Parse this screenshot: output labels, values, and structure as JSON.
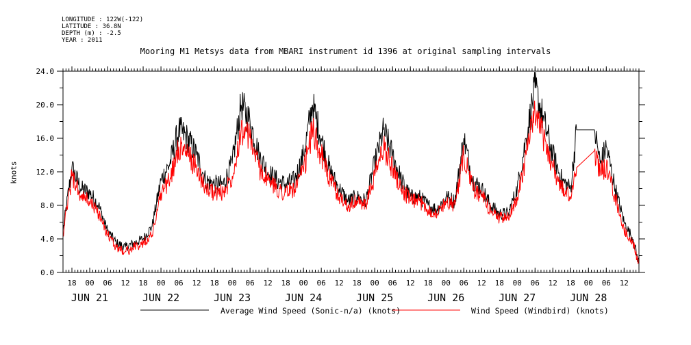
{
  "header": {
    "longitude": "LONGITUDE : 122W(-122)",
    "latitude": "LATITUDE : 36.8N",
    "depth": "DEPTH (m) : -2.5",
    "year": "YEAR : 2011"
  },
  "chart_data": {
    "type": "line",
    "title": "Mooring M1 Metsys data from MBARI instrument id 1396 at original sampling intervals",
    "ylabel": "knots",
    "xlabel": "",
    "ylim": [
      0,
      24
    ],
    "yticks": [
      "0.0",
      "4.0",
      "8.0",
      "12.0",
      "16.0",
      "20.0",
      "24.0"
    ],
    "x_range_hours": [
      "2011-06-20T15:00",
      "2011-06-28T17:00"
    ],
    "x_hour_ticks": [
      "18",
      "00",
      "06",
      "12",
      "18",
      "00",
      "06",
      "12",
      "18",
      "00",
      "06",
      "12",
      "18",
      "00",
      "06",
      "12",
      "18",
      "00",
      "06",
      "12",
      "18",
      "00",
      "06",
      "12",
      "18",
      "00",
      "06",
      "12",
      "18",
      "00",
      "06",
      "12"
    ],
    "x_day_labels": [
      "JUN 21",
      "JUN 22",
      "JUN 23",
      "JUN 24",
      "JUN 25",
      "JUN 26",
      "JUN 27",
      "JUN 28"
    ],
    "grid": false,
    "legend_position": "bottom",
    "series": [
      {
        "name": "Average Wind Speed (Sonic-n/a) (knots)",
        "color": "#000000",
        "x": [
          "2011-06-20T15:00",
          "2011-06-20T18:00",
          "2011-06-20T21:00",
          "2011-06-21T00:00",
          "2011-06-21T03:00",
          "2011-06-21T06:00",
          "2011-06-21T09:00",
          "2011-06-21T12:00",
          "2011-06-21T15:00",
          "2011-06-21T18:00",
          "2011-06-21T21:00",
          "2011-06-22T00:00",
          "2011-06-22T03:00",
          "2011-06-22T06:00",
          "2011-06-22T09:00",
          "2011-06-22T12:00",
          "2011-06-22T15:00",
          "2011-06-22T18:00",
          "2011-06-22T21:00",
          "2011-06-23T00:00",
          "2011-06-23T03:00",
          "2011-06-23T06:00",
          "2011-06-23T09:00",
          "2011-06-23T12:00",
          "2011-06-23T15:00",
          "2011-06-23T18:00",
          "2011-06-23T21:00",
          "2011-06-24T00:00",
          "2011-06-24T03:00",
          "2011-06-24T06:00",
          "2011-06-24T09:00",
          "2011-06-24T12:00",
          "2011-06-24T15:00",
          "2011-06-24T18:00",
          "2011-06-24T21:00",
          "2011-06-25T00:00",
          "2011-06-25T03:00",
          "2011-06-25T06:00",
          "2011-06-25T09:00",
          "2011-06-25T12:00",
          "2011-06-25T15:00",
          "2011-06-25T18:00",
          "2011-06-25T21:00",
          "2011-06-26T00:00",
          "2011-06-26T03:00",
          "2011-06-26T06:00",
          "2011-06-26T09:00",
          "2011-06-26T12:00",
          "2011-06-26T15:00",
          "2011-06-26T18:00",
          "2011-06-26T21:00",
          "2011-06-27T00:00",
          "2011-06-27T03:00",
          "2011-06-27T06:00",
          "2011-06-27T09:00",
          "2011-06-27T12:00",
          "2011-06-27T15:00",
          "2011-06-27T18:00",
          "2011-06-27T20:00",
          "2011-06-28T02:00",
          "2011-06-28T04:00",
          "2011-06-28T06:00",
          "2011-06-28T09:00",
          "2011-06-28T12:00",
          "2011-06-28T15:00",
          "2011-06-28T17:00"
        ],
        "y": [
          5,
          12.5,
          10,
          9.5,
          8,
          5,
          3.5,
          3,
          3.5,
          4,
          5.5,
          11,
          13,
          17,
          16,
          14,
          11,
          10.5,
          10.5,
          13,
          20,
          18,
          14,
          12,
          11,
          10.5,
          11,
          14,
          20,
          16,
          12,
          10,
          8.5,
          9,
          8.5,
          13,
          17,
          14,
          11,
          9,
          9,
          8,
          7.5,
          9,
          8.5,
          16,
          11,
          10,
          8,
          7,
          7,
          10,
          16,
          22,
          18,
          14,
          11,
          10,
          17,
          17,
          13,
          15,
          10,
          6,
          4,
          1
        ]
      },
      {
        "name": "Wind Speed (Windbird) (knots)",
        "color": "#ff0000",
        "x": [
          "2011-06-20T15:00",
          "2011-06-20T18:00",
          "2011-06-20T21:00",
          "2011-06-21T00:00",
          "2011-06-21T03:00",
          "2011-06-21T06:00",
          "2011-06-21T09:00",
          "2011-06-21T12:00",
          "2011-06-21T15:00",
          "2011-06-21T18:00",
          "2011-06-21T21:00",
          "2011-06-22T00:00",
          "2011-06-22T03:00",
          "2011-06-22T06:00",
          "2011-06-22T09:00",
          "2011-06-22T12:00",
          "2011-06-22T15:00",
          "2011-06-22T18:00",
          "2011-06-22T21:00",
          "2011-06-23T00:00",
          "2011-06-23T03:00",
          "2011-06-23T06:00",
          "2011-06-23T09:00",
          "2011-06-23T12:00",
          "2011-06-23T15:00",
          "2011-06-23T18:00",
          "2011-06-23T21:00",
          "2011-06-24T00:00",
          "2011-06-24T03:00",
          "2011-06-24T06:00",
          "2011-06-24T09:00",
          "2011-06-24T12:00",
          "2011-06-24T15:00",
          "2011-06-24T18:00",
          "2011-06-24T21:00",
          "2011-06-25T00:00",
          "2011-06-25T03:00",
          "2011-06-25T06:00",
          "2011-06-25T09:00",
          "2011-06-25T12:00",
          "2011-06-25T15:00",
          "2011-06-25T18:00",
          "2011-06-25T21:00",
          "2011-06-26T00:00",
          "2011-06-26T03:00",
          "2011-06-26T06:00",
          "2011-06-26T09:00",
          "2011-06-26T12:00",
          "2011-06-26T15:00",
          "2011-06-26T18:00",
          "2011-06-26T21:00",
          "2011-06-27T00:00",
          "2011-06-27T03:00",
          "2011-06-27T06:00",
          "2011-06-27T09:00",
          "2011-06-27T12:00",
          "2011-06-27T15:00",
          "2011-06-27T18:00",
          "2011-06-27T20:00",
          "2011-06-28T02:00",
          "2011-06-28T04:00",
          "2011-06-28T06:00",
          "2011-06-28T09:00",
          "2011-06-28T12:00",
          "2011-06-28T15:00",
          "2011-06-28T17:00"
        ],
        "y": [
          4.5,
          11.5,
          9,
          8.5,
          7,
          4.5,
          3,
          2.5,
          3,
          3.5,
          4.5,
          9.5,
          11,
          15,
          14,
          12.5,
          10,
          9.5,
          9.5,
          11.5,
          17,
          16,
          12.5,
          11,
          10,
          9.5,
          10,
          12,
          17,
          14,
          11,
          9,
          8,
          8.5,
          8,
          11.5,
          15,
          12.5,
          10,
          8.5,
          8.5,
          7.5,
          7,
          8.5,
          8,
          14,
          10,
          9,
          7.5,
          6.5,
          6.5,
          9,
          14,
          19,
          16,
          12.5,
          10,
          9,
          12.5,
          14.5,
          12,
          12.5,
          9,
          5,
          3.5,
          1
        ]
      }
    ]
  }
}
